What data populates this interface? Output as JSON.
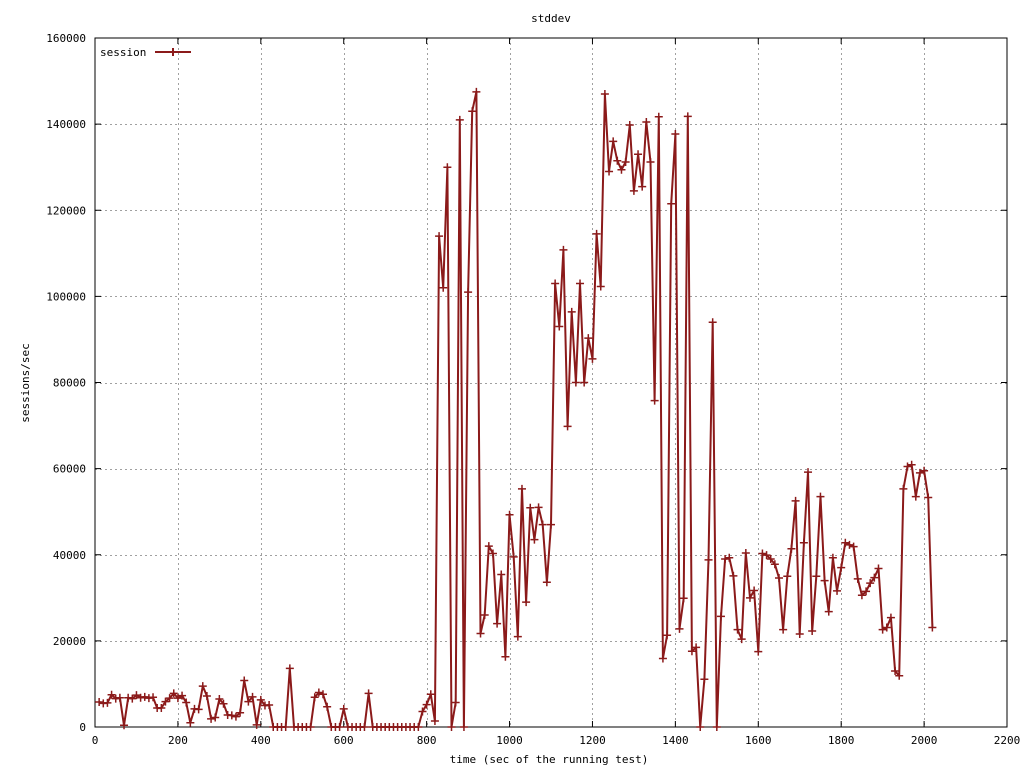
{
  "chart_data": {
    "type": "line",
    "title": "stddev",
    "xlabel": "time (sec of the running test)",
    "ylabel": "sessions/sec",
    "xlim": [
      0,
      2200
    ],
    "ylim": [
      0,
      160000
    ],
    "x_ticks": [
      0,
      200,
      400,
      600,
      800,
      1000,
      1200,
      1400,
      1600,
      1800,
      2000,
      2200
    ],
    "y_ticks": [
      0,
      20000,
      40000,
      60000,
      80000,
      100000,
      120000,
      140000,
      160000
    ],
    "grid": true,
    "legend_position": "top-left",
    "series": [
      {
        "name": "session",
        "color": "#8b1a1a",
        "marker": "plus",
        "points": [
          [
            10,
            5800
          ],
          [
            20,
            5500
          ],
          [
            30,
            5600
          ],
          [
            40,
            7500
          ],
          [
            50,
            6600
          ],
          [
            60,
            6800
          ],
          [
            70,
            400
          ],
          [
            80,
            6800
          ],
          [
            90,
            6600
          ],
          [
            100,
            7400
          ],
          [
            110,
            6800
          ],
          [
            120,
            7000
          ],
          [
            130,
            6700
          ],
          [
            140,
            6900
          ],
          [
            150,
            4400
          ],
          [
            160,
            4400
          ],
          [
            170,
            5900
          ],
          [
            180,
            6700
          ],
          [
            190,
            7800
          ],
          [
            200,
            6700
          ],
          [
            210,
            7300
          ],
          [
            220,
            5700
          ],
          [
            230,
            1000
          ],
          [
            240,
            4200
          ],
          [
            250,
            4100
          ],
          [
            260,
            9500
          ],
          [
            270,
            7200
          ],
          [
            280,
            1900
          ],
          [
            290,
            2200
          ],
          [
            300,
            6500
          ],
          [
            310,
            5400
          ],
          [
            320,
            2800
          ],
          [
            330,
            2700
          ],
          [
            340,
            2400
          ],
          [
            350,
            3300
          ],
          [
            360,
            10800
          ],
          [
            370,
            5900
          ],
          [
            380,
            7000
          ],
          [
            390,
            500
          ],
          [
            400,
            6300
          ],
          [
            410,
            5000
          ],
          [
            420,
            5100
          ],
          [
            430,
            0
          ],
          [
            440,
            0
          ],
          [
            450,
            0
          ],
          [
            460,
            0
          ],
          [
            470,
            13600
          ],
          [
            480,
            0
          ],
          [
            490,
            0
          ],
          [
            500,
            0
          ],
          [
            510,
            0
          ],
          [
            520,
            0
          ],
          [
            530,
            6900
          ],
          [
            540,
            8000
          ],
          [
            550,
            7600
          ],
          [
            560,
            4700
          ],
          [
            570,
            0
          ],
          [
            580,
            0
          ],
          [
            590,
            0
          ],
          [
            600,
            4200
          ],
          [
            610,
            0
          ],
          [
            620,
            0
          ],
          [
            630,
            0
          ],
          [
            640,
            0
          ],
          [
            650,
            0
          ],
          [
            660,
            7800
          ],
          [
            670,
            0
          ],
          [
            680,
            0
          ],
          [
            690,
            0
          ],
          [
            700,
            0
          ],
          [
            710,
            0
          ],
          [
            720,
            0
          ],
          [
            730,
            0
          ],
          [
            740,
            0
          ],
          [
            750,
            0
          ],
          [
            760,
            0
          ],
          [
            770,
            0
          ],
          [
            780,
            0
          ],
          [
            790,
            3600
          ],
          [
            800,
            5200
          ],
          [
            810,
            7600
          ],
          [
            820,
            1400
          ],
          [
            830,
            114000
          ],
          [
            840,
            102000
          ],
          [
            850,
            130000
          ],
          [
            860,
            0
          ],
          [
            870,
            5700
          ],
          [
            880,
            141000
          ],
          [
            890,
            0
          ],
          [
            900,
            101000
          ],
          [
            910,
            143000
          ],
          [
            920,
            147500
          ],
          [
            930,
            21700
          ],
          [
            940,
            26000
          ],
          [
            950,
            42000
          ],
          [
            960,
            40300
          ],
          [
            970,
            24000
          ],
          [
            980,
            35400
          ],
          [
            990,
            16300
          ],
          [
            1000,
            49300
          ],
          [
            1010,
            39500
          ],
          [
            1020,
            21000
          ],
          [
            1030,
            55300
          ],
          [
            1040,
            29000
          ],
          [
            1050,
            50900
          ],
          [
            1060,
            43500
          ],
          [
            1070,
            51000
          ],
          [
            1080,
            47000
          ],
          [
            1090,
            33600
          ],
          [
            1100,
            47000
          ],
          [
            1110,
            103000
          ],
          [
            1120,
            93000
          ],
          [
            1130,
            110800
          ],
          [
            1140,
            69800
          ],
          [
            1150,
            96400
          ],
          [
            1160,
            80000
          ],
          [
            1170,
            103000
          ],
          [
            1180,
            80000
          ],
          [
            1190,
            90300
          ],
          [
            1200,
            85500
          ],
          [
            1210,
            114500
          ],
          [
            1220,
            102300
          ],
          [
            1230,
            147000
          ],
          [
            1240,
            129000
          ],
          [
            1250,
            136000
          ],
          [
            1260,
            131500
          ],
          [
            1270,
            129400
          ],
          [
            1280,
            131200
          ],
          [
            1290,
            139800
          ],
          [
            1300,
            124500
          ],
          [
            1310,
            133000
          ],
          [
            1320,
            125500
          ],
          [
            1330,
            140500
          ],
          [
            1340,
            131200
          ],
          [
            1350,
            75800
          ],
          [
            1360,
            141700
          ],
          [
            1370,
            15900
          ],
          [
            1380,
            21300
          ],
          [
            1390,
            121500
          ],
          [
            1400,
            137700
          ],
          [
            1410,
            22800
          ],
          [
            1420,
            29900
          ],
          [
            1430,
            141800
          ],
          [
            1440,
            17600
          ],
          [
            1450,
            18500
          ],
          [
            1460,
            0
          ],
          [
            1470,
            11100
          ],
          [
            1480,
            38800
          ],
          [
            1490,
            94000
          ],
          [
            1500,
            0
          ],
          [
            1510,
            25700
          ],
          [
            1520,
            39000
          ],
          [
            1530,
            39300
          ],
          [
            1540,
            35100
          ],
          [
            1550,
            22600
          ],
          [
            1560,
            20400
          ],
          [
            1570,
            40400
          ],
          [
            1580,
            30000
          ],
          [
            1590,
            31700
          ],
          [
            1600,
            17500
          ],
          [
            1610,
            40300
          ],
          [
            1620,
            39900
          ],
          [
            1630,
            39000
          ],
          [
            1640,
            37800
          ],
          [
            1650,
            34600
          ],
          [
            1660,
            22600
          ],
          [
            1670,
            35000
          ],
          [
            1680,
            41400
          ],
          [
            1690,
            52500
          ],
          [
            1700,
            21600
          ],
          [
            1710,
            42800
          ],
          [
            1720,
            59200
          ],
          [
            1730,
            22300
          ],
          [
            1740,
            35000
          ],
          [
            1750,
            53500
          ],
          [
            1760,
            34000
          ],
          [
            1770,
            26800
          ],
          [
            1780,
            39300
          ],
          [
            1790,
            31600
          ],
          [
            1800,
            37000
          ],
          [
            1810,
            42800
          ],
          [
            1820,
            42300
          ],
          [
            1830,
            41900
          ],
          [
            1840,
            34400
          ],
          [
            1850,
            30600
          ],
          [
            1860,
            31500
          ],
          [
            1870,
            33400
          ],
          [
            1880,
            34700
          ],
          [
            1890,
            36800
          ],
          [
            1900,
            22600
          ],
          [
            1910,
            23100
          ],
          [
            1920,
            25400
          ],
          [
            1930,
            13000
          ],
          [
            1940,
            11900
          ],
          [
            1950,
            55300
          ],
          [
            1960,
            60500
          ],
          [
            1970,
            60900
          ],
          [
            1980,
            53500
          ],
          [
            1990,
            59000
          ],
          [
            2000,
            59500
          ],
          [
            2010,
            53300
          ],
          [
            2020,
            23100
          ]
        ]
      }
    ]
  }
}
